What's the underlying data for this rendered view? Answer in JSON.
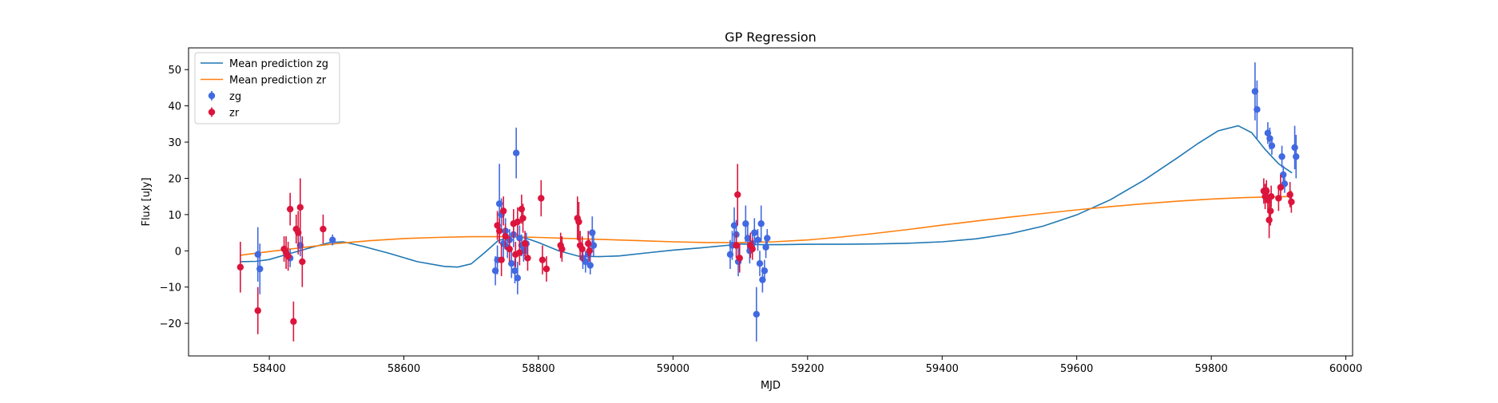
{
  "chart_data": {
    "type": "scatter",
    "title": "GP Regression",
    "xlabel": "MJD",
    "ylabel": "Flux [uJy]",
    "xlim": [
      58280,
      60010
    ],
    "ylim": [
      -29,
      56
    ],
    "xticks": [
      58400,
      58600,
      58800,
      59000,
      59200,
      59400,
      59600,
      59800,
      60000
    ],
    "yticks": [
      -20,
      -10,
      0,
      10,
      20,
      30,
      40,
      50
    ],
    "xtick_labels": [
      "58400",
      "58600",
      "58800",
      "59000",
      "59200",
      "59400",
      "59600",
      "59800",
      "60000"
    ],
    "ytick_labels": [
      "−20",
      "−10",
      "0",
      "10",
      "20",
      "30",
      "40",
      "50"
    ],
    "grid": false,
    "legend_position": "top-left",
    "legend": [
      {
        "label": "Mean prediction zg",
        "kind": "line",
        "color": "#1f77b4"
      },
      {
        "label": "Mean prediction zr",
        "kind": "line",
        "color": "#ff7f0e"
      },
      {
        "label": "zg",
        "kind": "errorbar",
        "color": "#4169e1"
      },
      {
        "label": "zr",
        "kind": "errorbar",
        "color": "#dc143c"
      }
    ],
    "lines": [
      {
        "name": "Mean prediction zg",
        "color": "#1f77b4",
        "x": [
          58357,
          58380,
          58400,
          58430,
          58460,
          58490,
          58510,
          58540,
          58580,
          58620,
          58660,
          58680,
          58700,
          58720,
          58740,
          58760,
          58780,
          58800,
          58830,
          58860,
          58890,
          58920,
          58960,
          59000,
          59040,
          59080,
          59100,
          59130,
          59160,
          59200,
          59250,
          59300,
          59350,
          59400,
          59450,
          59500,
          59550,
          59600,
          59650,
          59700,
          59750,
          59780,
          59810,
          59840,
          59860,
          59880,
          59900,
          59920
        ],
        "y": [
          -3.0,
          -2.9,
          -2.4,
          -0.8,
          0.8,
          2.3,
          2.5,
          1.2,
          -0.8,
          -3.0,
          -4.3,
          -4.5,
          -3.6,
          -0.5,
          2.8,
          3.9,
          3.6,
          2.3,
          0.0,
          -1.5,
          -1.6,
          -1.4,
          -0.6,
          0.2,
          0.8,
          1.5,
          1.9,
          1.7,
          1.7,
          1.8,
          1.8,
          1.9,
          2.1,
          2.5,
          3.3,
          4.7,
          6.8,
          9.9,
          14.1,
          19.5,
          25.7,
          29.6,
          33.1,
          34.5,
          32.6,
          28.0,
          24.0,
          21.5
        ]
      },
      {
        "name": "Mean prediction zr",
        "color": "#ff7f0e",
        "x": [
          58357,
          58400,
          58450,
          58500,
          58550,
          58600,
          58650,
          58700,
          58760,
          58800,
          58850,
          58900,
          58950,
          59000,
          59050,
          59100,
          59150,
          59200,
          59250,
          59300,
          59350,
          59400,
          59450,
          59500,
          59550,
          59600,
          59650,
          59700,
          59750,
          59800,
          59850,
          59900,
          59920
        ],
        "y": [
          -1.2,
          -0.2,
          0.9,
          2.0,
          2.8,
          3.4,
          3.7,
          3.9,
          3.9,
          3.7,
          3.4,
          3.1,
          2.8,
          2.5,
          2.3,
          2.3,
          2.5,
          3.0,
          3.8,
          4.8,
          5.9,
          7.1,
          8.2,
          9.3,
          10.3,
          11.3,
          12.2,
          13.0,
          13.7,
          14.3,
          14.7,
          14.9,
          15.0
        ]
      }
    ],
    "series": [
      {
        "name": "zg",
        "color": "#4169e1",
        "points": [
          {
            "x": 58383,
            "y": -1.0,
            "err": 7.5
          },
          {
            "x": 58386,
            "y": -5.0,
            "err": 7.0
          },
          {
            "x": 58431,
            "y": -2.0,
            "err": 2.5
          },
          {
            "x": 58446,
            "y": 1.5,
            "err": 3.0
          },
          {
            "x": 58494,
            "y": 3.0,
            "err": 1.5
          },
          {
            "x": 58736,
            "y": -5.5,
            "err": 4.0
          },
          {
            "x": 58739,
            "y": -2.5,
            "err": 4.0
          },
          {
            "x": 58742,
            "y": 13.0,
            "err": 11.0
          },
          {
            "x": 58745,
            "y": 10.0,
            "err": 4.5
          },
          {
            "x": 58748,
            "y": 2.0,
            "err": 4.0
          },
          {
            "x": 58751,
            "y": 5.5,
            "err": 3.5
          },
          {
            "x": 58754,
            "y": 1.0,
            "err": 3.0
          },
          {
            "x": 58757,
            "y": 3.0,
            "err": 3.0
          },
          {
            "x": 58760,
            "y": -3.5,
            "err": 4.0
          },
          {
            "x": 58763,
            "y": 4.5,
            "err": 3.5
          },
          {
            "x": 58765,
            "y": -5.5,
            "err": 3.5
          },
          {
            "x": 58767,
            "y": 27.0,
            "err": 7.0
          },
          {
            "x": 58769,
            "y": -7.5,
            "err": 4.5
          },
          {
            "x": 58772,
            "y": 3.5,
            "err": 3.5
          },
          {
            "x": 58775,
            "y": 1.5,
            "err": 3.0
          },
          {
            "x": 58778,
            "y": 0.0,
            "err": 3.0
          },
          {
            "x": 58782,
            "y": 2.0,
            "err": 3.0
          },
          {
            "x": 58866,
            "y": -2.0,
            "err": 3.0
          },
          {
            "x": 58870,
            "y": -3.0,
            "err": 3.0
          },
          {
            "x": 58874,
            "y": -1.0,
            "err": 2.5
          },
          {
            "x": 58877,
            "y": -4.0,
            "err": 2.5
          },
          {
            "x": 58880,
            "y": 5.0,
            "err": 4.5
          },
          {
            "x": 58882,
            "y": 1.5,
            "err": 3.0
          },
          {
            "x": 59085,
            "y": -1.0,
            "err": 4.0
          },
          {
            "x": 59088,
            "y": 1.5,
            "err": 4.0
          },
          {
            "x": 59091,
            "y": 7.0,
            "err": 5.0
          },
          {
            "x": 59094,
            "y": 4.5,
            "err": 4.0
          },
          {
            "x": 59097,
            "y": -3.0,
            "err": 4.0
          },
          {
            "x": 59108,
            "y": 7.5,
            "err": 5.0
          },
          {
            "x": 59111,
            "y": 3.5,
            "err": 3.5
          },
          {
            "x": 59114,
            "y": 0.0,
            "err": 3.5
          },
          {
            "x": 59118,
            "y": 2.0,
            "err": 3.5
          },
          {
            "x": 59121,
            "y": 5.0,
            "err": 4.0
          },
          {
            "x": 59124,
            "y": -17.5,
            "err": 7.5
          },
          {
            "x": 59126,
            "y": 3.0,
            "err": 3.0
          },
          {
            "x": 59129,
            "y": -3.5,
            "err": 3.5
          },
          {
            "x": 59131,
            "y": 7.5,
            "err": 5.0
          },
          {
            "x": 59133,
            "y": -8.0,
            "err": 3.5
          },
          {
            "x": 59136,
            "y": -5.5,
            "err": 3.0
          },
          {
            "x": 59138,
            "y": 1.0,
            "err": 3.0
          },
          {
            "x": 59140,
            "y": 3.5,
            "err": 2.5
          },
          {
            "x": 59865,
            "y": 44.0,
            "err": 8.0
          },
          {
            "x": 59868,
            "y": 39.0,
            "err": 8.0
          },
          {
            "x": 59884,
            "y": 32.5,
            "err": 3.0
          },
          {
            "x": 59887,
            "y": 31.0,
            "err": 3.0
          },
          {
            "x": 59890,
            "y": 29.0,
            "err": 2.5
          },
          {
            "x": 59905,
            "y": 26.0,
            "err": 3.0
          },
          {
            "x": 59907,
            "y": 21.0,
            "err": 2.5
          },
          {
            "x": 59909,
            "y": 18.5,
            "err": 2.5
          },
          {
            "x": 59924,
            "y": 28.5,
            "err": 6.0
          },
          {
            "x": 59926,
            "y": 26.0,
            "err": 6.0
          }
        ]
      },
      {
        "name": "zr",
        "color": "#dc143c",
        "points": [
          {
            "x": 58357,
            "y": -4.5,
            "err": 7.0
          },
          {
            "x": 58383,
            "y": -16.5,
            "err": 6.5
          },
          {
            "x": 58422,
            "y": 0.5,
            "err": 3.5
          },
          {
            "x": 58425,
            "y": -0.5,
            "err": 4.5
          },
          {
            "x": 58428,
            "y": -1.5,
            "err": 4.0
          },
          {
            "x": 58431,
            "y": 11.5,
            "err": 4.5
          },
          {
            "x": 58436,
            "y": -19.5,
            "err": 5.5
          },
          {
            "x": 58440,
            "y": 6.0,
            "err": 4.0
          },
          {
            "x": 58443,
            "y": 5.0,
            "err": 6.0
          },
          {
            "x": 58446,
            "y": 12.0,
            "err": 8.0
          },
          {
            "x": 58449,
            "y": -3.0,
            "err": 7.0
          },
          {
            "x": 58480,
            "y": 6.0,
            "err": 4.0
          },
          {
            "x": 58739,
            "y": 7.0,
            "err": 4.0
          },
          {
            "x": 58742,
            "y": 5.5,
            "err": 3.5
          },
          {
            "x": 58745,
            "y": -2.5,
            "err": 4.5
          },
          {
            "x": 58748,
            "y": 11.0,
            "err": 4.0
          },
          {
            "x": 58751,
            "y": 4.0,
            "err": 3.5
          },
          {
            "x": 58757,
            "y": 0.5,
            "err": 3.5
          },
          {
            "x": 58763,
            "y": 7.5,
            "err": 4.0
          },
          {
            "x": 58766,
            "y": -1.0,
            "err": 3.5
          },
          {
            "x": 58769,
            "y": 8.0,
            "err": 4.0
          },
          {
            "x": 58772,
            "y": -0.5,
            "err": 3.5
          },
          {
            "x": 58775,
            "y": 11.5,
            "err": 4.0
          },
          {
            "x": 58777,
            "y": 9.0,
            "err": 4.0
          },
          {
            "x": 58780,
            "y": 2.0,
            "err": 3.5
          },
          {
            "x": 58784,
            "y": -2.0,
            "err": 3.5
          },
          {
            "x": 58804,
            "y": 14.5,
            "err": 5.0
          },
          {
            "x": 58806,
            "y": -2.5,
            "err": 4.0
          },
          {
            "x": 58812,
            "y": -5.0,
            "err": 3.5
          },
          {
            "x": 58833,
            "y": 1.5,
            "err": 3.5
          },
          {
            "x": 58835,
            "y": 0.5,
            "err": 3.5
          },
          {
            "x": 58858,
            "y": 9.0,
            "err": 6.0
          },
          {
            "x": 58860,
            "y": 8.0,
            "err": 5.5
          },
          {
            "x": 58862,
            "y": 1.5,
            "err": 4.0
          },
          {
            "x": 58865,
            "y": 0.5,
            "err": 3.5
          },
          {
            "x": 58874,
            "y": 2.0,
            "err": 3.5
          },
          {
            "x": 58876,
            "y": 0.0,
            "err": 3.0
          },
          {
            "x": 59094,
            "y": 1.5,
            "err": 3.5
          },
          {
            "x": 59096,
            "y": 15.5,
            "err": 8.5
          },
          {
            "x": 59099,
            "y": -2.0,
            "err": 4.0
          },
          {
            "x": 59115,
            "y": 1.5,
            "err": 3.5
          },
          {
            "x": 59118,
            "y": 0.5,
            "err": 3.0
          },
          {
            "x": 59878,
            "y": 16.5,
            "err": 3.5
          },
          {
            "x": 59880,
            "y": 15.0,
            "err": 3.5
          },
          {
            "x": 59882,
            "y": 16.5,
            "err": 3.0
          },
          {
            "x": 59884,
            "y": 14.0,
            "err": 3.5
          },
          {
            "x": 59886,
            "y": 8.5,
            "err": 5.0
          },
          {
            "x": 59888,
            "y": 11.0,
            "err": 4.0
          },
          {
            "x": 59889,
            "y": 15.0,
            "err": 3.0
          },
          {
            "x": 59900,
            "y": 14.5,
            "err": 3.5
          },
          {
            "x": 59903,
            "y": 17.5,
            "err": 3.5
          },
          {
            "x": 59917,
            "y": 15.5,
            "err": 3.5
          },
          {
            "x": 59919,
            "y": 13.5,
            "err": 3.0
          }
        ]
      }
    ]
  }
}
